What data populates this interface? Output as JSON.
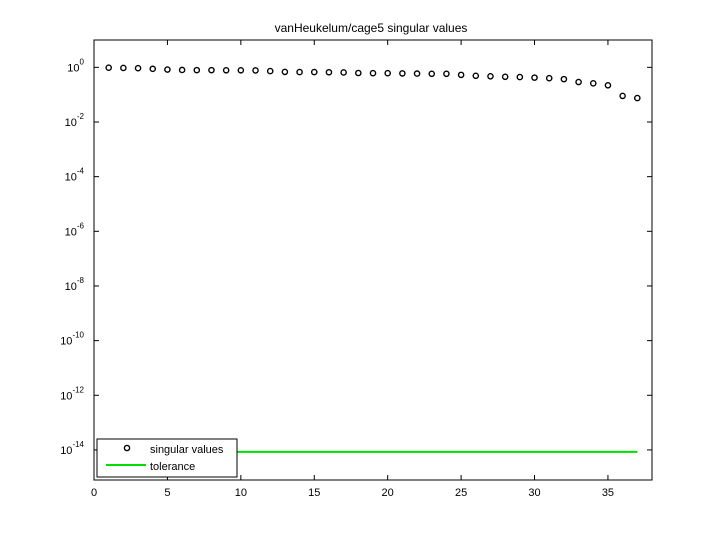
{
  "chart_data": {
    "type": "scatter",
    "title": "vanHeukelum/cage5 singular values",
    "xlabel": "",
    "ylabel": "",
    "y_scale": "log",
    "xlim": [
      0,
      38
    ],
    "ylim_exponent": [
      -15.1,
      1.0
    ],
    "x_ticks": [
      0,
      5,
      10,
      15,
      20,
      25,
      30,
      35
    ],
    "y_tick_exponents": [
      0,
      -2,
      -4,
      -6,
      -8,
      -10,
      -12,
      -14
    ],
    "y_tick_base": "10",
    "grid": false,
    "legend_position": "bottom-left",
    "series": [
      {
        "name": "singular values",
        "marker": "circle",
        "color": "#000000",
        "x": [
          1,
          2,
          3,
          4,
          5,
          6,
          7,
          8,
          9,
          10,
          11,
          12,
          13,
          14,
          15,
          16,
          17,
          18,
          19,
          20,
          21,
          22,
          23,
          24,
          25,
          26,
          27,
          28,
          29,
          30,
          31,
          32,
          33,
          34,
          35,
          36,
          37
        ],
        "y": [
          0.97,
          0.95,
          0.93,
          0.88,
          0.83,
          0.8,
          0.79,
          0.79,
          0.78,
          0.78,
          0.77,
          0.73,
          0.68,
          0.67,
          0.67,
          0.66,
          0.65,
          0.62,
          0.61,
          0.61,
          0.6,
          0.59,
          0.58,
          0.58,
          0.53,
          0.49,
          0.47,
          0.45,
          0.44,
          0.42,
          0.4,
          0.37,
          0.29,
          0.26,
          0.22,
          0.09,
          0.075
        ]
      },
      {
        "name": "tolerance",
        "line": true,
        "color": "#00e000",
        "x": [
          1,
          37
        ],
        "y": [
          8.5e-15,
          8.5e-15
        ]
      }
    ]
  }
}
